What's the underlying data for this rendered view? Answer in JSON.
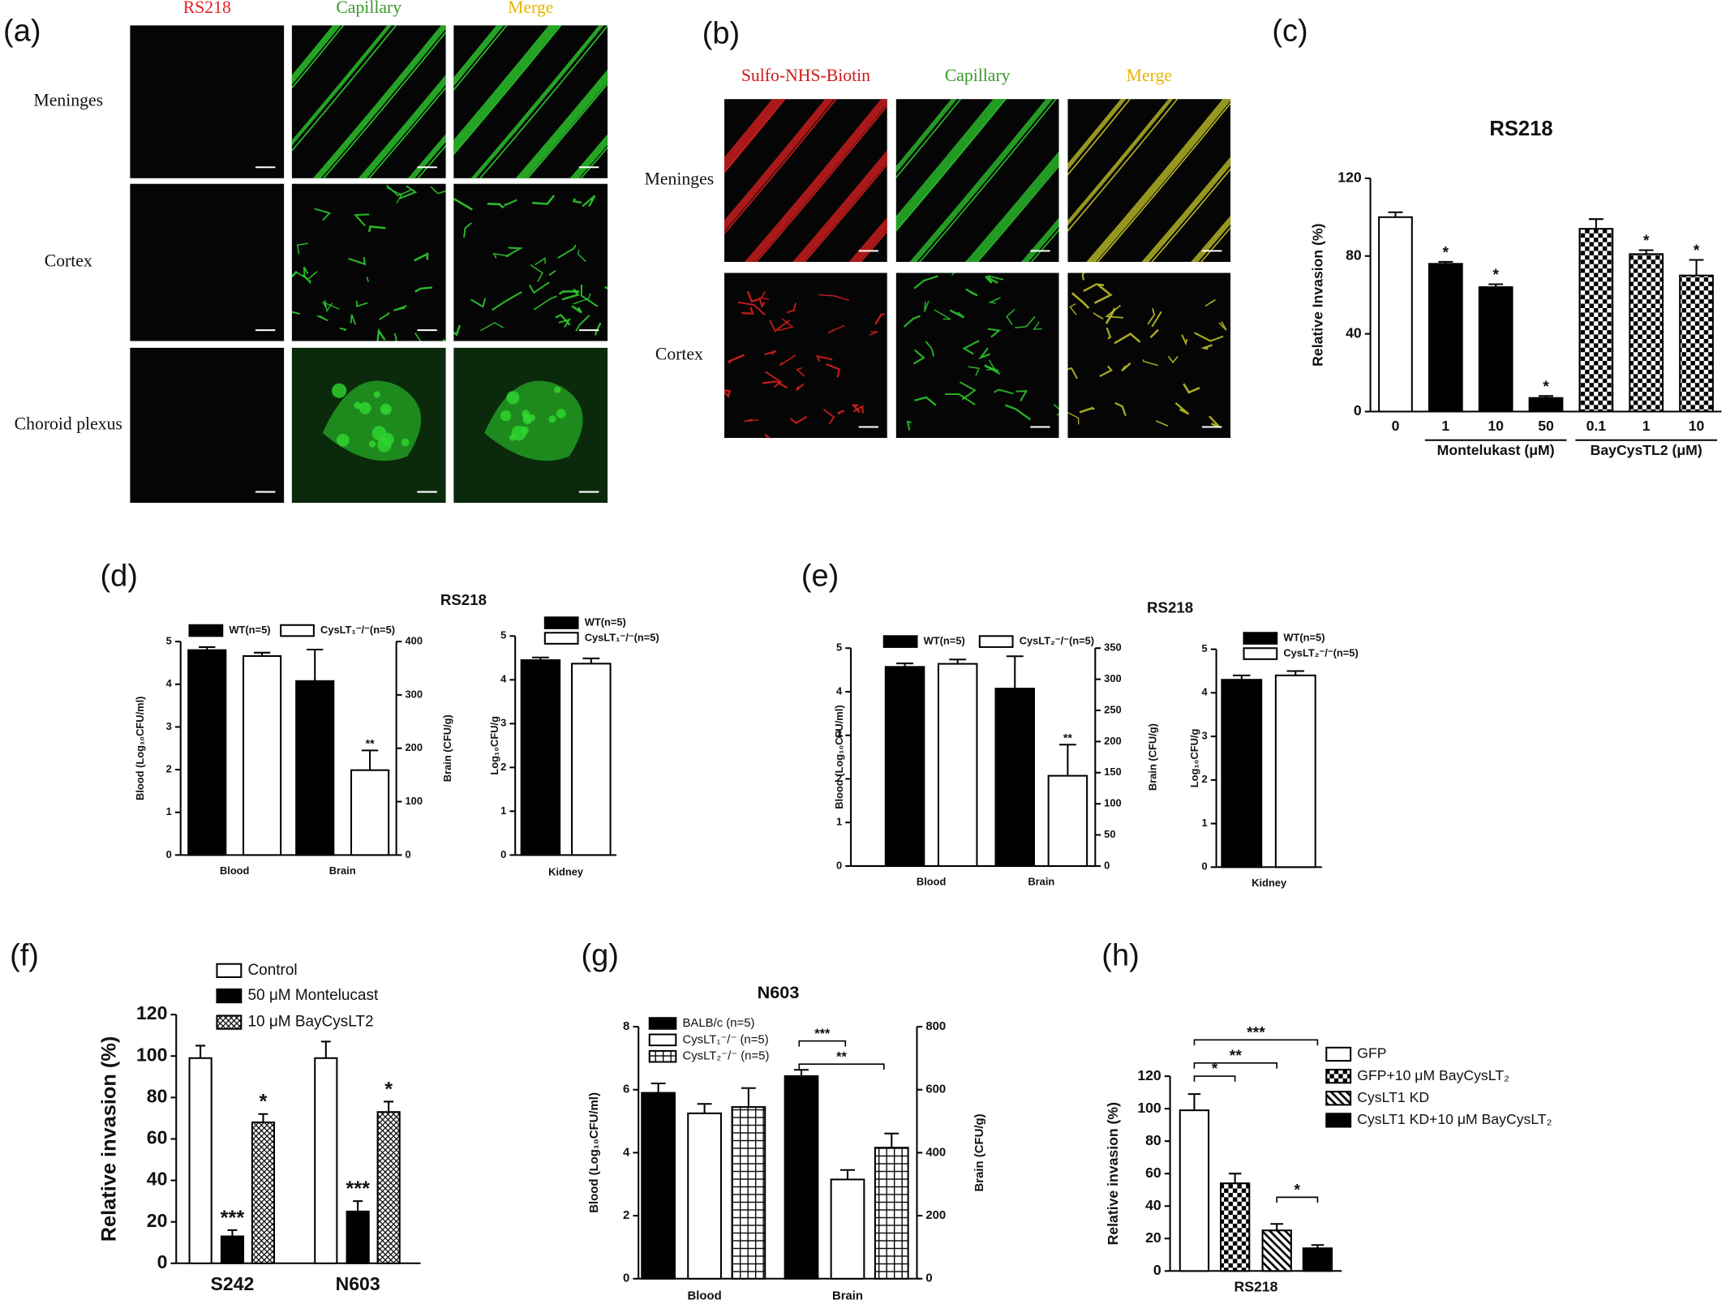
{
  "figure": {
    "a": {
      "label": "(a)",
      "columns": [
        "RS218",
        "Capillary",
        "Merge"
      ],
      "column_colors": [
        "#e02020",
        "#3a9a2a",
        "#e8b400"
      ],
      "rows": [
        "Meninges",
        "Cortex",
        "Choroid plexus"
      ]
    },
    "b": {
      "label": "(b)",
      "columns": [
        "Sulfo-NHS-Biotin",
        "Capillary",
        "Merge"
      ],
      "column_colors": [
        "#d01818",
        "#3a9a2a",
        "#e8b400"
      ],
      "rows": [
        "Meninges",
        "Cortex"
      ]
    }
  },
  "chart_data": [
    {
      "panel": "(c)",
      "type": "bar",
      "title": "RS218",
      "ylabel": "Relative Invasion (%)",
      "categories": [
        "0",
        "1",
        "10",
        "50",
        "0.1",
        "1",
        "10"
      ],
      "groups": [
        "Montelukast (μM)",
        "BayCysTL2 (μM)"
      ],
      "values": [
        100,
        76,
        64,
        7,
        94,
        81,
        70
      ],
      "errors": [
        2.5,
        1,
        1.5,
        1,
        5,
        2,
        8
      ],
      "significance": [
        null,
        "*",
        "*",
        "*",
        null,
        "*",
        "*"
      ],
      "fills": [
        "white",
        "black",
        "black",
        "black",
        "checker",
        "checker",
        "checker"
      ],
      "ylim": [
        0,
        120
      ],
      "yticks": [
        0,
        40,
        80,
        120
      ]
    },
    {
      "panel": "(d)",
      "type": "bar",
      "title": "RS218",
      "ylabel": "Blood (Log₁₀CFU/ml)",
      "y2label": "Brain (CFU/g)",
      "categories": [
        "Blood",
        "Brain"
      ],
      "category_axes": [
        "y",
        "y2"
      ],
      "series": [
        {
          "name": "WT(n=5)",
          "fill": "black",
          "values": [
            4.8,
            326
          ],
          "errors": [
            0.07,
            59
          ]
        },
        {
          "name": "CysLT₁⁻/⁻(n=5)",
          "fill": "white",
          "values": [
            4.66,
            159
          ],
          "errors": [
            0.08,
            37
          ],
          "significance": [
            null,
            "**"
          ]
        }
      ],
      "ylim": [
        0,
        5
      ],
      "yticks": [
        0,
        1,
        2,
        3,
        4,
        5
      ],
      "y2lim": [
        0,
        400
      ],
      "y2ticks": [
        0,
        100,
        200,
        300,
        400
      ]
    },
    {
      "type": "bar",
      "ylabel": "Log₁₀CFU/g",
      "categories": [
        "Kidney"
      ],
      "series": [
        {
          "name": "WT(n=5)",
          "fill": "black",
          "values": [
            4.45
          ],
          "errors": [
            0.06
          ]
        },
        {
          "name": "CysLT₁⁻/⁻(n=5)",
          "fill": "white",
          "values": [
            4.37
          ],
          "errors": [
            0.12
          ]
        }
      ],
      "ylim": [
        0,
        5
      ],
      "yticks": [
        0,
        1,
        2,
        3,
        4,
        5
      ]
    },
    {
      "panel": "(e)",
      "type": "bar",
      "title": "RS218",
      "ylabel": "Blood (Log₁₀CFU/ml)",
      "y2label": "Brain (CFU/g)",
      "categories": [
        "Blood",
        "Brain"
      ],
      "category_axes": [
        "y",
        "y2"
      ],
      "series": [
        {
          "name": "WT(n=5)",
          "fill": "black",
          "values": [
            4.57,
            285
          ],
          "errors": [
            0.08,
            52
          ]
        },
        {
          "name": "CysLT₂⁻/⁻(n=5)",
          "fill": "white",
          "values": [
            4.64,
            145
          ],
          "errors": [
            0.1,
            50
          ],
          "significance": [
            null,
            "**"
          ]
        }
      ],
      "ylim": [
        0,
        5
      ],
      "yticks": [
        0,
        1,
        2,
        3,
        4,
        5
      ],
      "y2lim": [
        0,
        350
      ],
      "y2ticks": [
        0,
        50,
        100,
        150,
        200,
        250,
        300,
        350
      ]
    },
    {
      "type": "bar",
      "ylabel": "Log₁₀CFU/g",
      "categories": [
        "Kidney"
      ],
      "series": [
        {
          "name": "WT(n=5)",
          "fill": "black",
          "values": [
            4.3
          ],
          "errors": [
            0.1
          ]
        },
        {
          "name": "CysLT₂⁻/⁻(n=5)",
          "fill": "white",
          "values": [
            4.4
          ],
          "errors": [
            0.1
          ]
        }
      ],
      "ylim": [
        0,
        5
      ],
      "yticks": [
        0,
        1,
        2,
        3,
        4,
        5
      ]
    },
    {
      "panel": "(f)",
      "type": "bar",
      "ylabel": "Relative invasion (%)",
      "categories": [
        "S242",
        "N603"
      ],
      "series": [
        {
          "name": "Control",
          "fill": "white",
          "values": [
            99,
            99
          ],
          "errors": [
            6,
            8
          ]
        },
        {
          "name": "50 μM Montelucast",
          "fill": "black",
          "values": [
            13,
            25
          ],
          "errors": [
            3,
            5
          ],
          "significance": [
            "***",
            "***"
          ]
        },
        {
          "name": "10 μM BayCysLT2",
          "fill": "crosshatch",
          "values": [
            68,
            73
          ],
          "errors": [
            4,
            5
          ],
          "significance": [
            "*",
            "*"
          ]
        }
      ],
      "ylim": [
        0,
        120
      ],
      "yticks": [
        0,
        20,
        40,
        60,
        80,
        100,
        120
      ]
    },
    {
      "panel": "(g)",
      "type": "bar",
      "title": "N603",
      "ylabel": "Blood (Log₁₀CFU/ml)",
      "y2label": "Brain (CFU/g)",
      "categories": [
        "Blood",
        "Brain"
      ],
      "category_axes": [
        "y",
        "y2"
      ],
      "series": [
        {
          "name": "BALB/c (n=5)",
          "fill": "black",
          "values": [
            5.9,
            643
          ],
          "errors": [
            0.3,
            20
          ]
        },
        {
          "name": "CysLT₁⁻/⁻ (n=5)",
          "fill": "white",
          "values": [
            5.25,
            315
          ],
          "errors": [
            0.3,
            30
          ]
        },
        {
          "name": "CysLT₂⁻/⁻ (n=5)",
          "fill": "grid",
          "values": [
            5.45,
            416
          ],
          "errors": [
            0.6,
            45
          ]
        }
      ],
      "brackets": [
        "***",
        "**"
      ],
      "ylim": [
        0,
        8
      ],
      "yticks": [
        0,
        2,
        4,
        6,
        8
      ],
      "y2lim": [
        0,
        800
      ],
      "y2ticks": [
        0,
        200,
        400,
        600,
        800
      ]
    },
    {
      "panel": "(h)",
      "type": "bar",
      "ylabel": "Relative invasion (%)",
      "categories": [
        "RS218"
      ],
      "series": [
        {
          "name": "GFP",
          "fill": "white",
          "values": [
            99
          ],
          "errors": [
            10
          ]
        },
        {
          "name": "GFP+10 μM BayCysLT₂",
          "fill": "checker",
          "values": [
            54
          ],
          "errors": [
            6
          ]
        },
        {
          "name": "CysLT1 KD",
          "fill": "hatch",
          "values": [
            25
          ],
          "errors": [
            4
          ]
        },
        {
          "name": "CysLT1 KD+10 μM BayCysLT₂",
          "fill": "black",
          "values": [
            14
          ],
          "errors": [
            2
          ]
        }
      ],
      "brackets": [
        "*",
        "**",
        "***",
        "*"
      ],
      "ylim": [
        0,
        120
      ],
      "yticks": [
        0,
        20,
        40,
        60,
        80,
        100,
        120
      ]
    }
  ]
}
